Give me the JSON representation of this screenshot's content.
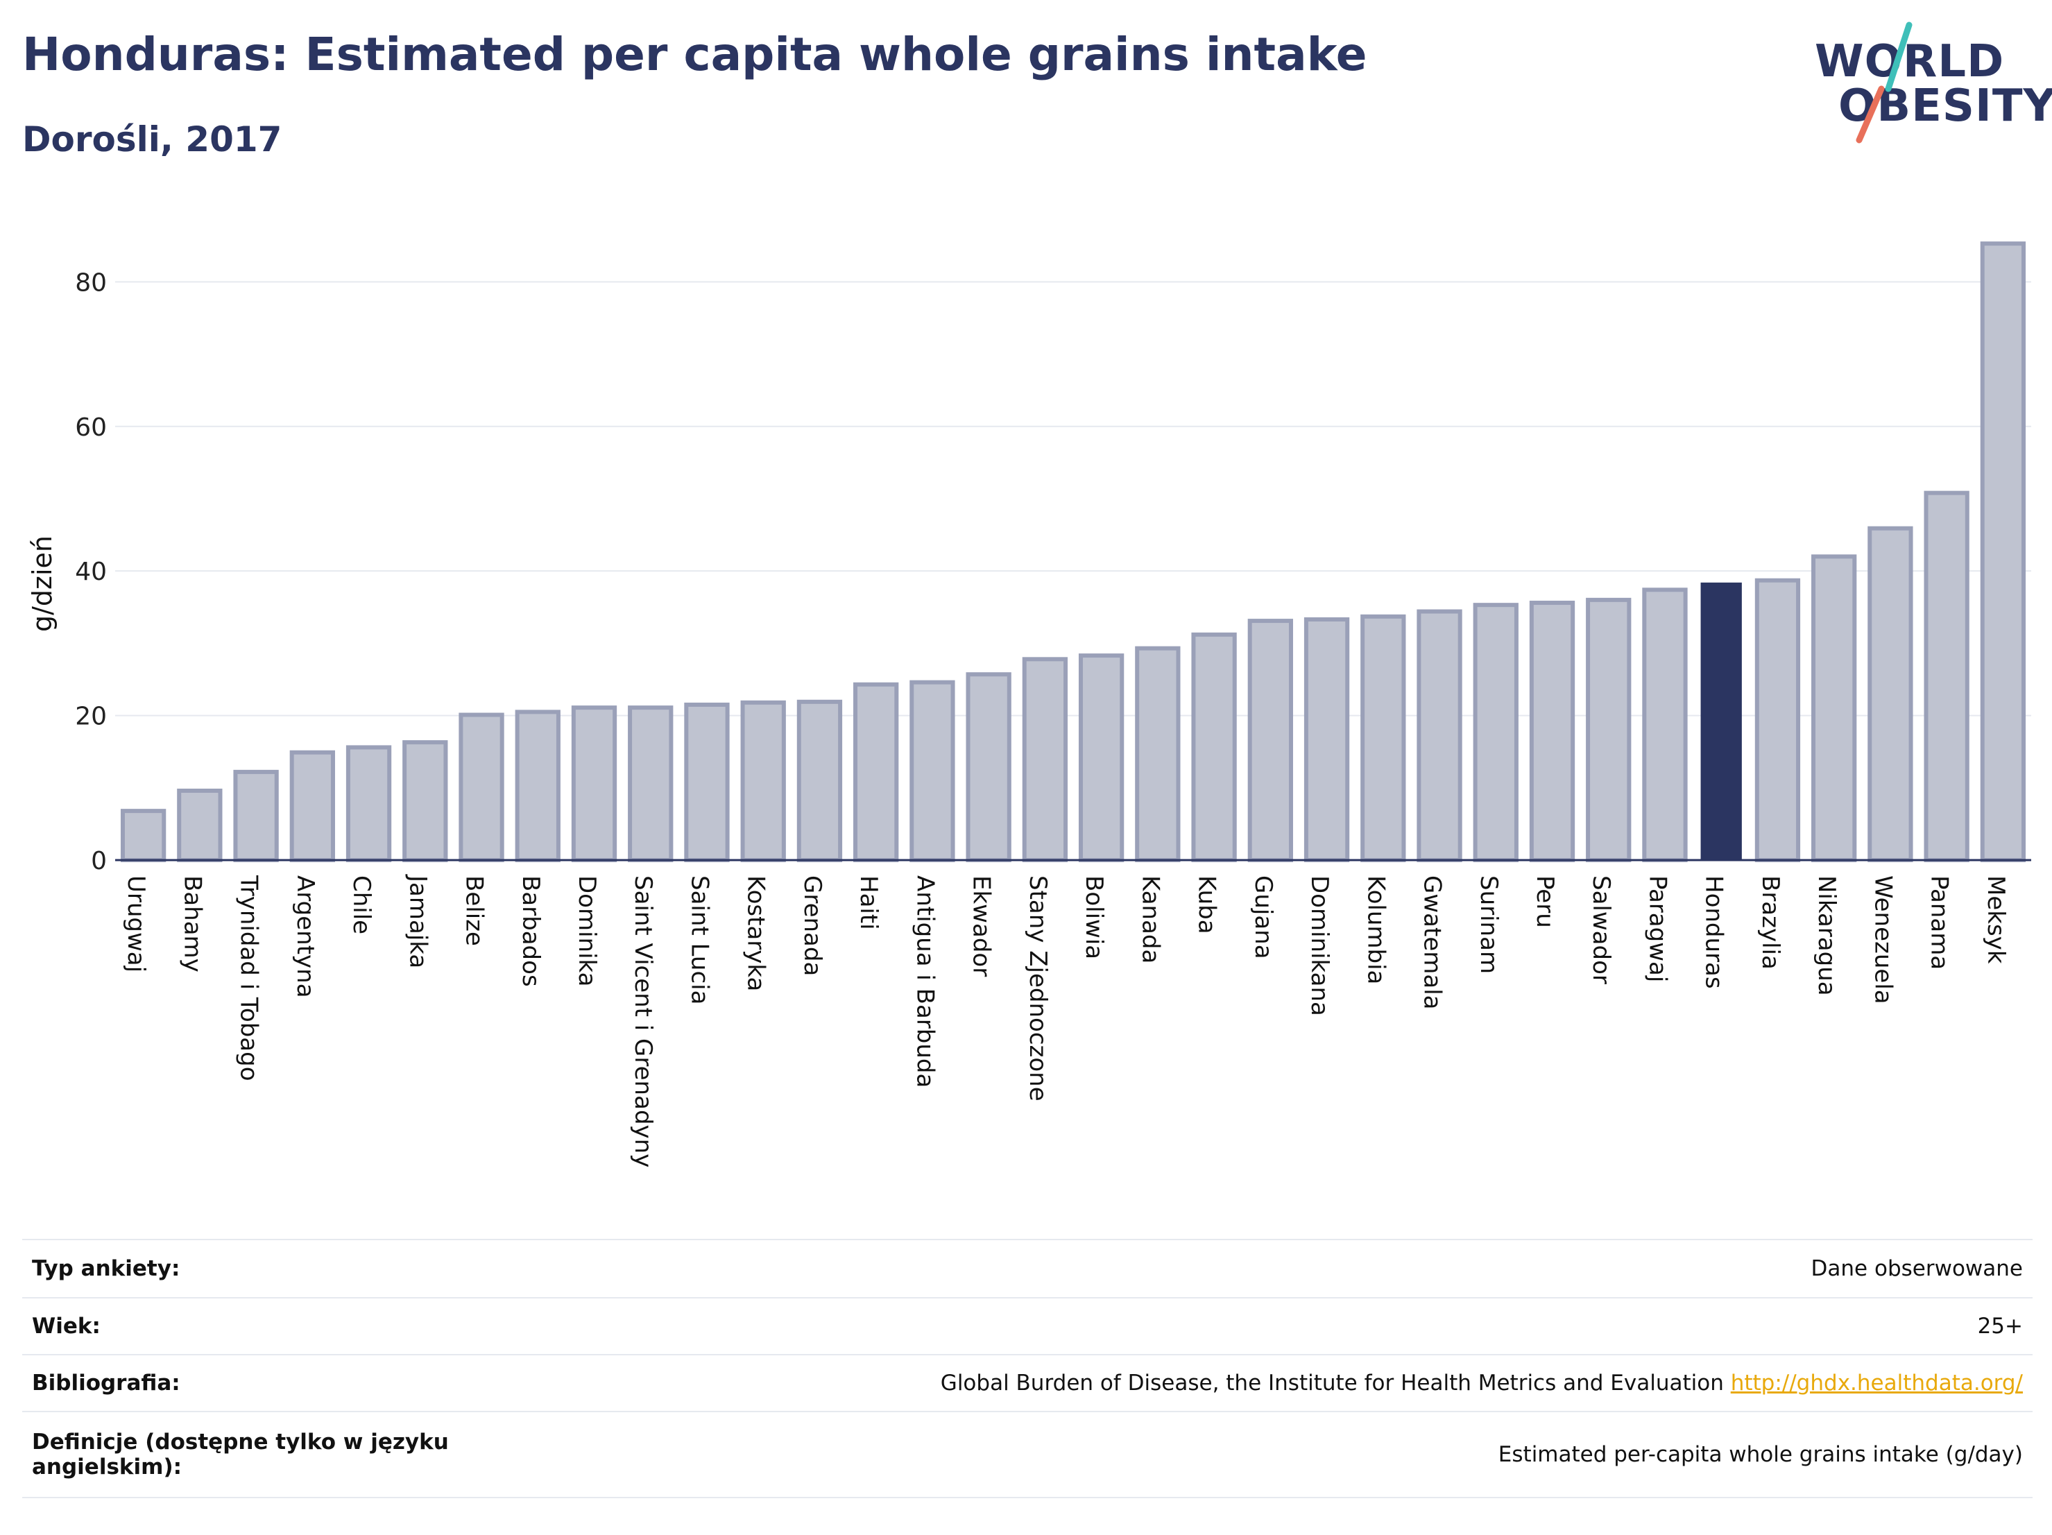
{
  "header": {
    "title": "Honduras: Estimated per capita whole grains intake",
    "subtitle": "Dorośli, 2017"
  },
  "logo": {
    "line1": "WORLD",
    "line2": "OBESITY",
    "accent_teal": "#3fbfb9",
    "accent_coral": "#e8705a"
  },
  "colors": {
    "bar_default": "#bfc3d0",
    "bar_default_stroke": "#9aa0b8",
    "bar_highlight": "#2b3561",
    "text": "#2b3561",
    "grid": "#e6e9ef",
    "link": "#e8a90c"
  },
  "chart_data": {
    "type": "bar",
    "ylabel": "g/dzień",
    "xlabel": "",
    "ylim": [
      0,
      88
    ],
    "yticks": [
      0,
      20,
      40,
      60,
      80
    ],
    "grid": true,
    "highlight": "Honduras",
    "categories": [
      "Urugwaj",
      "Bahamy",
      "Trynidad i Tobago",
      "Argentyna",
      "Chile",
      "Jamajka",
      "Belize",
      "Barbados",
      "Dominika",
      "Saint Vicent i Grenadyny",
      "Saint Lucia",
      "Kostaryka",
      "Grenada",
      "Haiti",
      "Antigua i Barbuda",
      "Ekwador",
      "Stany Zjednoczone",
      "Boliwia",
      "Kanada",
      "Kuba",
      "Gujana",
      "Dominikana",
      "Kolumbia",
      "Gwatemala",
      "Surinam",
      "Peru",
      "Salwador",
      "Paragwaj",
      "Honduras",
      "Brazylia",
      "Nikaragua",
      "Wenezuela",
      "Panama",
      "Meksyk"
    ],
    "values": [
      6.8,
      9.6,
      12.2,
      14.9,
      15.6,
      16.3,
      20.1,
      20.5,
      21.1,
      21.1,
      21.5,
      21.8,
      21.9,
      24.3,
      24.6,
      25.7,
      27.8,
      28.3,
      29.3,
      31.2,
      33.1,
      33.3,
      33.7,
      34.4,
      35.3,
      35.6,
      36.0,
      37.4,
      38.4,
      38.7,
      42.0,
      45.9,
      50.8,
      85.3
    ]
  },
  "info_table": [
    {
      "label": "Typ ankiety:",
      "value": "Dane obserwowane"
    },
    {
      "label": "Wiek:",
      "value": "25+"
    },
    {
      "label": "Bibliografia:",
      "value": "Global Burden of Disease, the Institute for Health Metrics and Evaluation",
      "link": "http://ghdx.healthdata.org/"
    },
    {
      "label": "Definicje (dostępne tylko w języku angielskim):",
      "value": "Estimated per-capita whole grains intake (g/day)"
    }
  ]
}
